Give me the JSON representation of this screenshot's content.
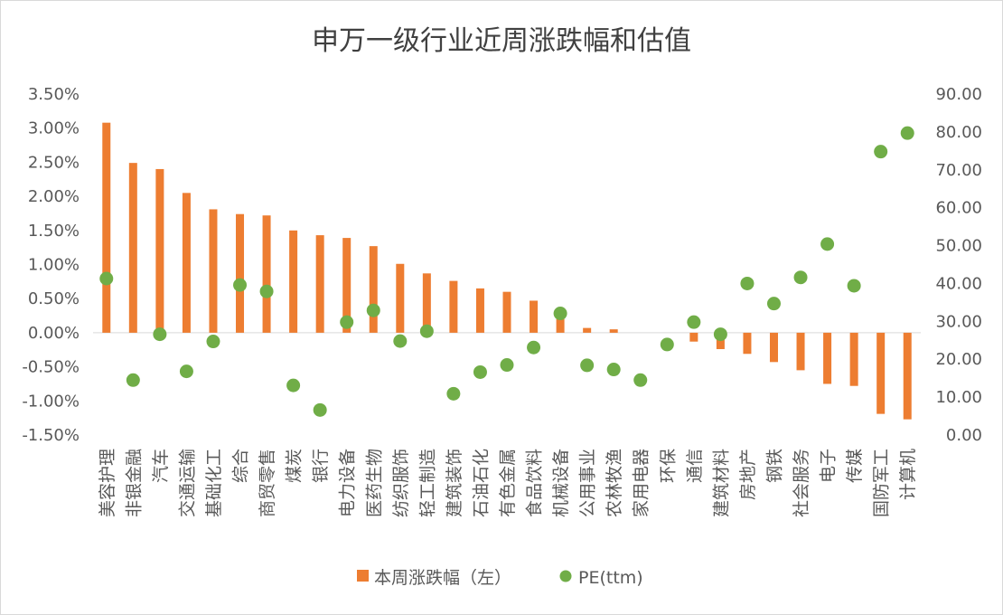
{
  "chart_data": {
    "type": "bar",
    "title": "申万一级行业近周涨跌幅和估值",
    "categories": [
      "美容护理",
      "非银金融",
      "汽车",
      "交通运输",
      "基础化工",
      "综合",
      "商贸零售",
      "煤炭",
      "银行",
      "电力设备",
      "医药生物",
      "纺织服饰",
      "轻工制造",
      "建筑装饰",
      "石油石化",
      "有色金属",
      "食品饮料",
      "机械设备",
      "公用事业",
      "农林牧渔",
      "家用电器",
      "环保",
      "通信",
      "建筑材料",
      "房地产",
      "钢铁",
      "社会服务",
      "电子",
      "传媒",
      "国防军工",
      "计算机"
    ],
    "series": [
      {
        "name": "本周涨跌幅（左）",
        "type": "bar",
        "axis": "left",
        "color": "#ED7D31",
        "values": [
          3.08,
          2.49,
          2.4,
          2.05,
          1.81,
          1.74,
          1.72,
          1.5,
          1.43,
          1.39,
          1.27,
          1.01,
          0.87,
          0.76,
          0.65,
          0.6,
          0.47,
          0.2,
          0.07,
          0.05,
          0.0,
          0.0,
          -0.13,
          -0.24,
          -0.31,
          -0.43,
          -0.55,
          -0.75,
          -0.78,
          -1.19,
          -1.27
        ]
      },
      {
        "name": "PE(ttm)",
        "type": "scatter",
        "axis": "right",
        "color": "#70AD47",
        "values": [
          41.3,
          14.5,
          26.6,
          16.8,
          24.7,
          39.6,
          37.9,
          13.1,
          6.6,
          29.8,
          32.9,
          24.8,
          27.4,
          10.9,
          16.6,
          18.5,
          23.1,
          32.1,
          18.4,
          17.3,
          14.5,
          23.9,
          29.8,
          26.6,
          40.0,
          34.7,
          41.6,
          50.4,
          39.4,
          74.8,
          79.7
        ]
      }
    ],
    "y_left": {
      "min": -1.5,
      "max": 3.5,
      "step": 0.5,
      "format": "percent2"
    },
    "y_right": {
      "min": 0,
      "max": 90,
      "step": 10,
      "format": "fixed2"
    },
    "grid": false,
    "legend_position": "bottom"
  },
  "legend": [
    {
      "label": "本周涨跌幅（左）",
      "marker": "square",
      "color": "#ED7D31"
    },
    {
      "label": "PE(ttm)",
      "marker": "circle",
      "color": "#70AD47"
    }
  ],
  "colors": {
    "axis_line": "#D9D9D9",
    "text": "#595959",
    "title": "#404040"
  }
}
